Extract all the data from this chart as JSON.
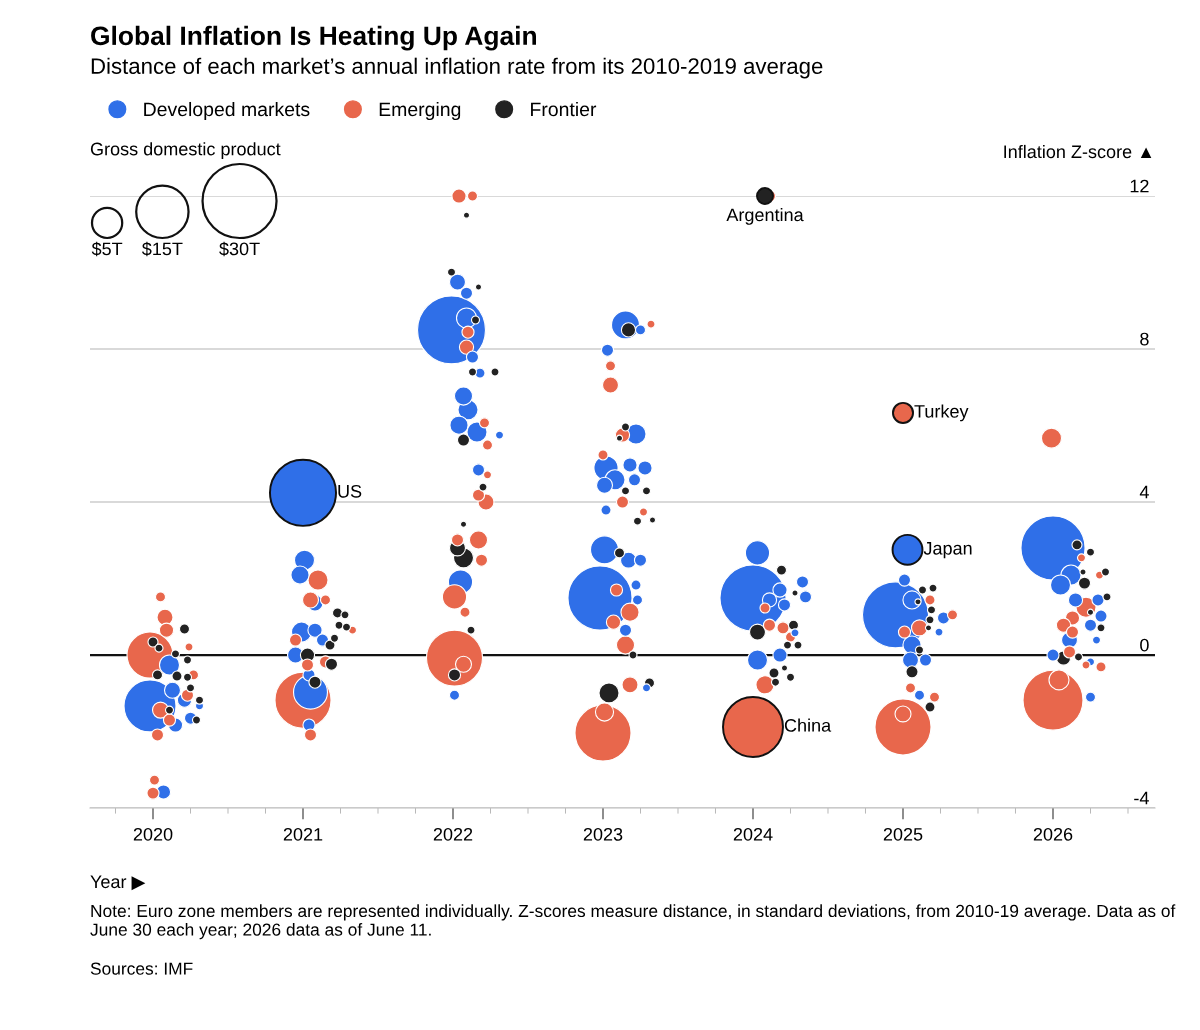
{
  "chart_data": {
    "type": "bubble",
    "title": "Global Inflation Is Heating Up Again",
    "subtitle": "Distance of each market’s annual inflation rate from its 2010-2019 average",
    "xlabel": "Year ▶",
    "ylabel": "Inflation Z-score ▲",
    "xlim": [
      2019.58,
      2026.68
    ],
    "xticks": [
      2020,
      2021,
      2022,
      2023,
      2024,
      2025,
      2026
    ],
    "ylim": [
      -4,
      12
    ],
    "yticks": [
      -4,
      0,
      4,
      8,
      12
    ],
    "grid": "y",
    "legend": "top left",
    "ref_lines": [
      {
        "axis": "y",
        "value": 0,
        "color": "#111111"
      }
    ],
    "size_legend": [
      {
        "value": 5,
        "label": "$5T"
      },
      {
        "value": 15,
        "label": "$15T"
      },
      {
        "value": 30,
        "label": "$30T"
      }
    ],
    "annotations": [
      "Gross domestic product",
      "Note: Euro zone members are represented individually. Z-scores measure distance, in standard deviations, from 2010-19 average. Data as of June 30 each year; 2026 data as of June 11.",
      "Sources: IMF",
      {
        "text": "US",
        "x": 2021.0,
        "y": 4.24
      },
      {
        "text": "Argentina",
        "x": 2024.08,
        "y": 12.0
      },
      {
        "text": "Turkey",
        "x": 2025.0,
        "y": 6.33
      },
      {
        "text": "Japan",
        "x": 2025.03,
        "y": 2.75
      },
      {
        "text": "China",
        "x": 2024.0,
        "y": -1.88
      }
    ],
    "series": [
      {
        "name": "Developed markets",
        "color": "#2f6fe8",
        "x": [
          2019.98,
          2020.11,
          2020.13,
          2020.21,
          2020.25,
          2020.15,
          2020.31,
          2020.07,
          2021.0,
          2021.05,
          2021.01,
          2020.98,
          2021.08,
          2020.99,
          2021.08,
          2021.13,
          2021.04,
          2021.04,
          2020.95,
          2022.03,
          2022.09,
          2021.99,
          2022.09,
          2022.13,
          2022.18,
          2022.07,
          2022.1,
          2022.04,
          2022.16,
          2022.31,
          2022.17,
          2022.05,
          2022.01,
          2023.15,
          2023.25,
          2023.03,
          2023.22,
          2023.02,
          2023.18,
          2023.28,
          2023.08,
          2023.21,
          2023.01,
          2023.02,
          2023.01,
          2023.17,
          2023.25,
          2022.98,
          2023.22,
          2023.23,
          2023.15,
          2023.29,
          2024.0,
          2024.03,
          2024.18,
          2024.33,
          2024.11,
          2024.35,
          2024.21,
          2024.28,
          2024.03,
          2024.18,
          2025.03,
          2024.95,
          2025.01,
          2025.06,
          2025.27,
          2025.24,
          2025.06,
          2025.05,
          2025.15,
          2025.11,
          2026.0,
          2026.12,
          2026.05,
          2026.15,
          2026.3,
          2026.32,
          2026.25,
          2026.29,
          2026.11,
          2026.0,
          2026.25,
          2026.25
        ],
        "values": [
          -1.33,
          -0.26,
          -0.92,
          -1.18,
          -1.65,
          -1.83,
          -1.33,
          -3.58,
          4.24,
          -0.97,
          2.48,
          2.09,
          1.36,
          0.6,
          0.65,
          0.39,
          -0.52,
          -1.83,
          0.0,
          9.75,
          9.46,
          8.5,
          8.81,
          7.79,
          7.37,
          6.77,
          6.41,
          6.01,
          5.83,
          5.75,
          4.84,
          1.91,
          -1.05,
          8.63,
          8.5,
          7.97,
          5.78,
          4.89,
          4.97,
          4.89,
          4.58,
          4.58,
          4.44,
          3.79,
          2.75,
          2.48,
          2.48,
          1.49,
          1.83,
          1.44,
          0.65,
          -0.86,
          1.49,
          2.67,
          1.7,
          1.91,
          1.44,
          1.52,
          1.31,
          0.58,
          -0.13,
          0.0,
          2.75,
          1.05,
          1.96,
          1.44,
          0.97,
          0.6,
          0.26,
          -0.13,
          -0.13,
          -1.05,
          2.8,
          2.09,
          1.83,
          1.44,
          1.44,
          1.02,
          0.78,
          0.39,
          0.39,
          0.0,
          -0.18,
          -1.1
        ],
        "sizes": [
          14.8,
          2.2,
          1.4,
          1.1,
          0.8,
          1.1,
          0.35,
          1.1,
          23.9,
          6.3,
          2.2,
          1.8,
          1.4,
          2.2,
          1.1,
          0.8,
          0.8,
          0.8,
          1.4,
          1.4,
          0.8,
          25.3,
          2.2,
          0.8,
          0.55,
          1.8,
          2.2,
          1.8,
          2.2,
          0.35,
          0.8,
          3.2,
          0.55,
          4.3,
          0.55,
          0.8,
          2.2,
          3.2,
          1.1,
          1.1,
          2.2,
          0.8,
          1.4,
          0.55,
          4.3,
          1.4,
          0.8,
          22.5,
          0.55,
          0.55,
          0.8,
          0.35,
          23.9,
          3.2,
          1.1,
          0.8,
          1.1,
          0.8,
          0.8,
          0.35,
          2.2,
          1.1,
          4.9,
          23.9,
          0.8,
          1.8,
          0.8,
          0.35,
          1.8,
          1.4,
          0.8,
          0.55,
          22.5,
          2.2,
          2.2,
          1.1,
          0.8,
          0.8,
          0.8,
          0.35,
          1.4,
          0.8,
          0.35,
          0.55
        ]
      },
      {
        "name": "Emerging",
        "color": "#e8674c",
        "x": [
          2019.98,
          2020.05,
          2020.08,
          2020.09,
          2020.23,
          2020.05,
          2020.03,
          2020.11,
          2020.24,
          2020.27,
          2020.01,
          2020.0,
          2021.0,
          2021.1,
          2021.05,
          2021.15,
          2021.33,
          2021.03,
          2021.15,
          2021.05,
          2020.95,
          2022.04,
          2022.13,
          2022.1,
          2022.09,
          2022.21,
          2022.23,
          2022.23,
          2022.22,
          2022.17,
          2022.03,
          2022.17,
          2022.19,
          2022.01,
          2022.08,
          2022.01,
          2022.07,
          2023.32,
          2023.05,
          2023.05,
          2023.13,
          2023.0,
          2023.13,
          2023.27,
          2023.09,
          2023.18,
          2023.07,
          2023.15,
          2023.18,
          2023.01,
          2023.0,
          2024.11,
          2024.08,
          2024.11,
          2024.2,
          2024.25,
          2024.08,
          2024.0,
          2025.0,
          2025.18,
          2025.33,
          2025.11,
          2025.01,
          2025.05,
          2025.21,
          2025.0,
          2025.0,
          2025.99,
          2026.19,
          2026.31,
          2026.22,
          2026.13,
          2026.07,
          2026.13,
          2026.11,
          2026.22,
          2026.32,
          2026.0,
          2026.04
        ],
        "values": [
          0.0,
          1.52,
          0.99,
          0.65,
          -1.05,
          -1.44,
          -2.09,
          -1.7,
          0.21,
          -0.52,
          -3.27,
          -3.61,
          -1.18,
          1.96,
          1.44,
          1.44,
          0.65,
          -0.26,
          -0.18,
          -2.09,
          0.39,
          12.0,
          12.0,
          8.44,
          8.05,
          6.07,
          5.49,
          4.71,
          4.0,
          4.18,
          3.01,
          3.01,
          2.48,
          1.52,
          1.12,
          -0.08,
          -0.24,
          8.65,
          7.56,
          7.06,
          5.75,
          5.23,
          4.0,
          3.74,
          1.7,
          1.12,
          0.86,
          0.26,
          -0.78,
          -1.49,
          -2.04,
          12.0,
          1.23,
          0.78,
          0.71,
          0.47,
          -0.78,
          -1.88,
          6.33,
          1.44,
          1.05,
          0.71,
          0.6,
          -0.86,
          -1.1,
          -1.88,
          -1.54,
          5.67,
          2.54,
          2.09,
          1.25,
          0.97,
          0.78,
          0.6,
          0.08,
          -0.26,
          -0.31,
          -1.18,
          -0.65
        ],
        "sizes": [
          11.6,
          0.55,
          1.4,
          1.1,
          0.8,
          1.4,
          0.8,
          0.8,
          0.35,
          0.55,
          0.55,
          0.8,
          17.2,
          2.2,
          1.4,
          0.55,
          0.35,
          0.8,
          0.8,
          0.8,
          0.8,
          1.1,
          0.55,
          0.8,
          1.1,
          0.55,
          0.55,
          0.35,
          1.4,
          0.8,
          0.8,
          1.8,
          0.8,
          3.2,
          0.55,
          17.2,
          1.4,
          0.35,
          0.55,
          1.4,
          1.1,
          0.55,
          0.8,
          0.35,
          0.8,
          1.8,
          1.1,
          1.8,
          1.4,
          1.8,
          17.2,
          0.8,
          0.55,
          0.8,
          0.8,
          0.55,
          1.8,
          19.7,
          2.2,
          0.55,
          0.55,
          1.4,
          0.8,
          0.55,
          0.55,
          17.2,
          1.4,
          2.2,
          0.35,
          0.35,
          2.2,
          1.1,
          1.1,
          0.8,
          0.8,
          0.35,
          0.55,
          19.7,
          2.2
        ]
      },
      {
        "name": "Frontier",
        "color": "#222222",
        "x": [
          2020.21,
          2020.0,
          2020.04,
          2020.16,
          2020.23,
          2020.25,
          2020.31,
          2020.29,
          2020.11,
          2020.03,
          2020.15,
          2020.23,
          2021.23,
          2021.28,
          2021.24,
          2021.29,
          2021.21,
          2021.18,
          2021.03,
          2021.19,
          2021.08,
          2022.09,
          2021.99,
          2022.17,
          2022.15,
          2022.13,
          2022.28,
          2022.07,
          2022.2,
          2022.07,
          2022.03,
          2022.07,
          2022.12,
          2022.01,
          2023.17,
          2023.15,
          2023.11,
          2023.15,
          2023.29,
          2023.23,
          2023.33,
          2023.11,
          2023.2,
          2023.31,
          2023.04,
          2024.08,
          2024.19,
          2024.28,
          2024.27,
          2024.03,
          2024.3,
          2024.23,
          2024.21,
          2024.14,
          2024.25,
          2024.15,
          2025.13,
          2025.2,
          2025.1,
          2025.19,
          2025.18,
          2025.17,
          2025.11,
          2025.06,
          2025.18,
          2026.16,
          2026.25,
          2026.2,
          2026.21,
          2026.35,
          2026.36,
          2026.25,
          2026.32,
          2026.07,
          2026.17
        ],
        "values": [
          0.68,
          0.34,
          0.18,
          -0.55,
          -0.58,
          -0.86,
          -1.18,
          -1.7,
          -1.44,
          -0.52,
          0.03,
          -0.13,
          1.1,
          1.05,
          0.78,
          0.73,
          0.44,
          0.26,
          0.0,
          -0.24,
          -0.71,
          11.5,
          10.01,
          9.62,
          8.76,
          7.4,
          7.4,
          5.62,
          4.39,
          3.42,
          2.8,
          2.54,
          0.65,
          -0.52,
          8.5,
          5.96,
          5.67,
          4.29,
          4.29,
          3.5,
          3.53,
          2.67,
          0.0,
          -0.73,
          -0.99,
          12.0,
          2.22,
          1.62,
          0.78,
          0.6,
          0.26,
          0.26,
          -0.34,
          -0.47,
          -0.58,
          -0.71,
          1.7,
          1.75,
          1.39,
          1.18,
          0.92,
          0.71,
          0.13,
          -0.44,
          -1.36,
          2.88,
          2.69,
          2.17,
          1.88,
          2.17,
          1.52,
          1.12,
          0.71,
          -0.08,
          -0.05
        ],
        "sizes": [
          0.55,
          0.55,
          0.35,
          0.55,
          0.35,
          0.35,
          0.35,
          0.35,
          0.35,
          0.55,
          0.35,
          0.35,
          0.55,
          0.35,
          0.35,
          0.35,
          0.35,
          0.55,
          1.1,
          0.8,
          0.8,
          0.2,
          0.35,
          0.2,
          0.35,
          0.35,
          0.35,
          0.8,
          0.35,
          0.2,
          1.4,
          2.2,
          0.35,
          0.8,
          1.1,
          0.35,
          0.2,
          0.35,
          0.35,
          0.35,
          0.2,
          0.55,
          0.35,
          0.55,
          2.2,
          1.4,
          0.55,
          0.2,
          0.55,
          1.4,
          0.35,
          0.35,
          0.2,
          0.55,
          0.35,
          0.35,
          0.35,
          0.35,
          0.2,
          0.35,
          0.35,
          0.2,
          0.35,
          0.8,
          0.55,
          0.55,
          0.35,
          0.2,
          0.8,
          0.35,
          0.35,
          0.2,
          0.35,
          1.1,
          0.35
        ]
      }
    ]
  }
}
